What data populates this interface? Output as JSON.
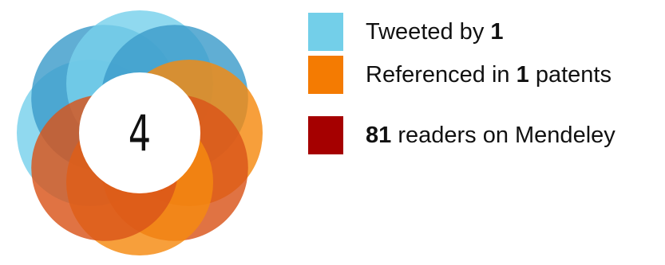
{
  "badge": {
    "score": "4",
    "colors": {
      "twitter": "#73cfe9",
      "patents": "#f47b02",
      "mendeley": "#a50000"
    },
    "segments": [
      {
        "name": "twitter",
        "fraction": 0.5
      },
      {
        "name": "patents",
        "fraction": 0.5
      }
    ]
  },
  "legend": {
    "twitter": {
      "prefix": "Tweeted by ",
      "count": "1",
      "suffix": ""
    },
    "patents": {
      "prefix": "Referenced in ",
      "count": "1",
      "suffix": " patents"
    },
    "mendeley": {
      "prefix": "",
      "count": "81",
      "suffix": " readers on Mendeley"
    }
  }
}
